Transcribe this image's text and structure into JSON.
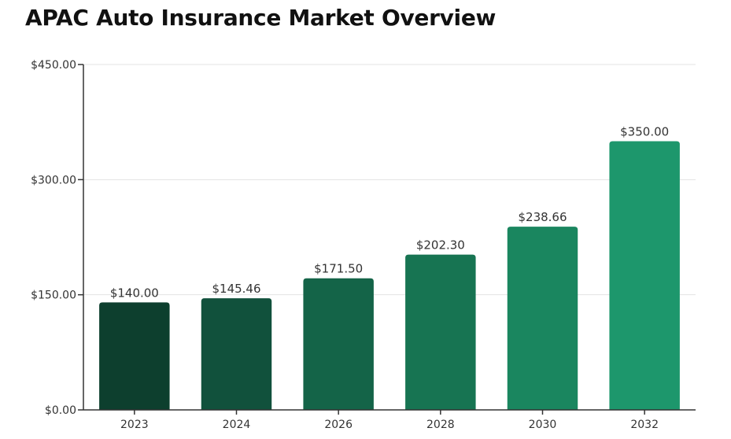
{
  "chart_data": {
    "type": "bar",
    "title": "APAC Auto Insurance Market Overview",
    "xlabel": "",
    "ylabel": "",
    "categories": [
      "2023",
      "2024",
      "2026",
      "2028",
      "2030",
      "2032"
    ],
    "values": [
      140.0,
      145.46,
      171.5,
      202.3,
      238.66,
      350.0
    ],
    "value_labels": [
      "$140.00",
      "$145.46",
      "$171.50",
      "$202.30",
      "$238.66",
      "$350.00"
    ],
    "ylim": [
      0,
      450
    ],
    "yticks": [
      0,
      150,
      300,
      450
    ],
    "ytick_labels": [
      "$0.00",
      "$150.00",
      "$300.00",
      "$450.00"
    ],
    "grid": true,
    "legend": "none",
    "colors": [
      "#0d3f2e",
      "#11513c",
      "#146448",
      "#177452",
      "#1a865f",
      "#1d976c"
    ]
  }
}
